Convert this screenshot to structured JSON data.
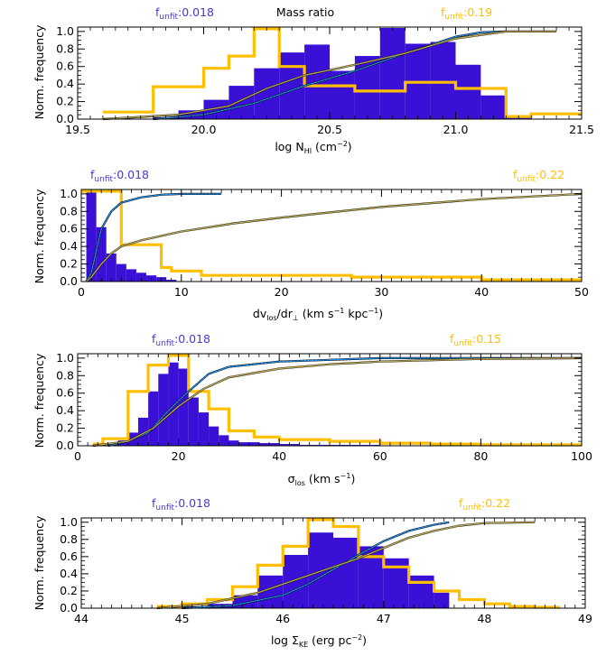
{
  "colors": {
    "blue_hist": "#3a10d6",
    "yellow_hist": "#ffbf00",
    "blue_cdf": "#1f6fd0",
    "yellow_cdf": "#e0a030",
    "cyan_cdf": "#30c0d0",
    "black_cdf": "#000000"
  },
  "chart_data": [
    {
      "type": "bar",
      "title": "Mass ratio",
      "ylabel": "Norm. frequency",
      "xlabel_main": "log N",
      "xlabel_sub": "HI",
      "xlabel_tail": " (cm",
      "xlabel_sup": "−2",
      "xlabel_end": ")",
      "xlim": [
        19.5,
        21.5
      ],
      "ylim": [
        0,
        1.05
      ],
      "xticks": [
        19.5,
        20.0,
        20.5,
        21.0,
        21.5
      ],
      "xtick_labels": [
        "19.5",
        "20.0",
        "20.5",
        "21.0",
        "21.5"
      ],
      "yticks": [
        0.0,
        0.2,
        0.4,
        0.6,
        0.8,
        1.0
      ],
      "ytick_labels": [
        "0.0",
        "0.2",
        "0.4",
        "0.6",
        "0.8",
        "1.0"
      ],
      "funfit_blue": {
        "prefix": "f",
        "sub": "unfit",
        "value": ":0.018"
      },
      "funfit_yellow": {
        "prefix": "f",
        "sub": "unfit",
        "value": ":0.19"
      },
      "blue_bins": [
        19.8,
        19.9,
        20.0,
        20.1,
        20.2,
        20.3,
        20.4,
        20.5,
        20.6,
        20.7,
        20.8,
        20.9,
        21.0,
        21.1,
        21.2,
        21.3
      ],
      "blue_values": [
        0.02,
        0.1,
        0.22,
        0.38,
        0.58,
        0.76,
        0.85,
        0.55,
        0.72,
        1.04,
        0.86,
        0.88,
        0.62,
        0.27,
        0.04
      ],
      "yellow_bins": [
        19.6,
        19.8,
        20.0,
        20.1,
        20.2,
        20.3,
        20.4,
        20.6,
        20.8,
        21.0,
        21.2,
        21.3,
        21.5
      ],
      "yellow_values": [
        0.08,
        0.37,
        0.58,
        0.72,
        1.03,
        0.6,
        0.38,
        0.32,
        0.42,
        0.35,
        0.03,
        0.06
      ],
      "cdfs": [
        {
          "color": "blue",
          "x": [
            19.8,
            20.0,
            20.2,
            20.4,
            20.6,
            20.8,
            21.0,
            21.1,
            21.2
          ],
          "y": [
            0.0,
            0.05,
            0.18,
            0.38,
            0.55,
            0.75,
            0.94,
            0.99,
            1.0
          ]
        },
        {
          "color": "yellow",
          "x": [
            19.6,
            19.9,
            20.1,
            20.25,
            20.4,
            20.6,
            20.8,
            21.0,
            21.2,
            21.4
          ],
          "y": [
            0.0,
            0.05,
            0.15,
            0.35,
            0.5,
            0.62,
            0.75,
            0.92,
            1.0,
            1.0
          ]
        }
      ]
    },
    {
      "type": "bar",
      "ylabel": "Norm. frequency",
      "xlabel_main": "dv",
      "xlabel_sub": "los",
      "xlabel_tail": "/dr",
      "xlabel_sub2": "⊥",
      "xlabel_tail2": " (km s",
      "xlabel_sup": "−1",
      "xlabel_tail3": " kpc",
      "xlabel_sup2": "−1",
      "xlabel_end": ")",
      "xlim": [
        0,
        50
      ],
      "ylim": [
        0,
        1.05
      ],
      "xticks": [
        0,
        10,
        20,
        30,
        40,
        50
      ],
      "xtick_labels": [
        "0",
        "10",
        "20",
        "30",
        "40",
        "50"
      ],
      "yticks": [
        0.0,
        0.2,
        0.4,
        0.6,
        0.8,
        1.0
      ],
      "ytick_labels": [
        "0.0",
        "0.2",
        "0.4",
        "0.6",
        "0.8",
        "1.0"
      ],
      "funfit_blue": {
        "prefix": "f",
        "sub": "unfit",
        "value": ":0.018"
      },
      "funfit_yellow": {
        "prefix": "f",
        "sub": "unfit",
        "value": ":0.22"
      },
      "blue_bins": [
        0.5,
        1.5,
        2.5,
        3.5,
        4.5,
        5.5,
        6.5,
        7.5,
        8.5,
        9.5
      ],
      "blue_values": [
        1.03,
        0.62,
        0.32,
        0.2,
        0.14,
        0.1,
        0.07,
        0.05,
        0.02
      ],
      "yellow_bins": [
        0,
        1,
        4,
        5,
        8,
        9,
        12,
        27,
        28,
        40,
        50
      ],
      "yellow_values": [
        1.03,
        1.03,
        0.42,
        0.42,
        0.16,
        0.12,
        0.07,
        0.05,
        0.05,
        0.02
      ],
      "cdfs": [
        {
          "color": "blue",
          "x": [
            0.5,
            1,
            1.5,
            2,
            3,
            4,
            6,
            8,
            10,
            12,
            14
          ],
          "y": [
            0.0,
            0.1,
            0.35,
            0.6,
            0.8,
            0.9,
            0.96,
            0.99,
            1.0,
            1.0,
            1.0
          ]
        },
        {
          "color": "yellow",
          "x": [
            0.5,
            1,
            2,
            3,
            4,
            6,
            10,
            15,
            20,
            30,
            40,
            50
          ],
          "y": [
            0.0,
            0.05,
            0.2,
            0.32,
            0.4,
            0.47,
            0.57,
            0.66,
            0.73,
            0.85,
            0.94,
            1.0
          ]
        }
      ]
    },
    {
      "type": "bar",
      "ylabel": "Norm. frequency",
      "xlabel_main": "σ",
      "xlabel_sub": "los",
      "xlabel_tail": " (km s",
      "xlabel_sup": "−1",
      "xlabel_end": ")",
      "xlim": [
        0,
        100
      ],
      "ylim": [
        0,
        1.05
      ],
      "xticks": [
        0,
        20,
        40,
        60,
        80,
        100
      ],
      "xtick_labels": [
        "0",
        "20",
        "40",
        "60",
        "80",
        "100"
      ],
      "yticks": [
        0.0,
        0.2,
        0.4,
        0.6,
        0.8,
        1.0
      ],
      "ytick_labels": [
        "0.0",
        "0.2",
        "0.4",
        "0.6",
        "0.8",
        "1.0"
      ],
      "funfit_blue": {
        "prefix": "f",
        "sub": "unfit",
        "value": ":0.018"
      },
      "funfit_yellow": {
        "prefix": "f",
        "sub": "unfit",
        "value": ":0.15"
      },
      "blue_bins": [
        6,
        8,
        10,
        12,
        14,
        16,
        18,
        20,
        22,
        24,
        26,
        28,
        30,
        32,
        36,
        40,
        44,
        50,
        56,
        60
      ],
      "blue_values": [
        0.02,
        0.06,
        0.15,
        0.32,
        0.62,
        0.82,
        0.95,
        0.88,
        0.55,
        0.38,
        0.22,
        0.12,
        0.06,
        0.04,
        0.03,
        0.02,
        0.01,
        0.01,
        0.01
      ],
      "yellow_bins": [
        3,
        5,
        10,
        14,
        18,
        22,
        26,
        30,
        35,
        40,
        50,
        60,
        70,
        80,
        90,
        100
      ],
      "yellow_values": [
        0.02,
        0.08,
        0.62,
        0.92,
        1.03,
        0.62,
        0.42,
        0.17,
        0.1,
        0.07,
        0.05,
        0.03,
        0.02,
        0.01,
        0.01
      ],
      "cdfs": [
        {
          "color": "blue",
          "x": [
            6,
            10,
            14,
            18,
            22,
            26,
            30,
            40,
            50,
            60,
            70,
            80,
            90,
            100
          ],
          "y": [
            0.0,
            0.05,
            0.15,
            0.4,
            0.62,
            0.82,
            0.9,
            0.96,
            0.98,
            1.0,
            1.0,
            1.0,
            1.0,
            1.0
          ]
        },
        {
          "color": "yellow",
          "x": [
            3,
            10,
            15,
            20,
            25,
            30,
            40,
            50,
            60,
            80,
            100
          ],
          "y": [
            0.0,
            0.05,
            0.2,
            0.45,
            0.65,
            0.78,
            0.88,
            0.93,
            0.96,
            0.99,
            1.0
          ]
        }
      ]
    },
    {
      "type": "bar",
      "ylabel": "Norm. frequency",
      "xlabel_main": "log Σ",
      "xlabel_sub": "KE",
      "xlabel_tail": " (erg pc",
      "xlabel_sup": "−2",
      "xlabel_end": ")",
      "xlim": [
        44,
        49
      ],
      "ylim": [
        0,
        1.05
      ],
      "xticks": [
        44,
        45,
        46,
        47,
        48,
        49
      ],
      "xtick_labels": [
        "44",
        "45",
        "46",
        "47",
        "48",
        "49"
      ],
      "yticks": [
        0.0,
        0.2,
        0.4,
        0.6,
        0.8,
        1.0
      ],
      "ytick_labels": [
        "0.0",
        "0.2",
        "0.4",
        "0.6",
        "0.8",
        "1.0"
      ],
      "funfit_blue": {
        "prefix": "f",
        "sub": "unfit",
        "value": ":0.018"
      },
      "funfit_yellow": {
        "prefix": "f",
        "sub": "unfit",
        "value": ":0.22"
      },
      "blue_bins": [
        45.0,
        45.25,
        45.5,
        45.75,
        46.0,
        46.25,
        46.5,
        46.75,
        47.0,
        47.25,
        47.5,
        47.65
      ],
      "blue_values": [
        0.02,
        0.05,
        0.15,
        0.38,
        0.62,
        0.88,
        0.82,
        0.72,
        0.58,
        0.38,
        0.18
      ],
      "yellow_bins": [
        44.75,
        45.0,
        45.25,
        45.5,
        45.75,
        46.0,
        46.25,
        46.5,
        46.75,
        47.0,
        47.25,
        47.5,
        47.75,
        48.0,
        48.25,
        48.5,
        48.75
      ],
      "yellow_values": [
        0.02,
        0.05,
        0.1,
        0.25,
        0.5,
        0.72,
        1.03,
        0.95,
        0.6,
        0.48,
        0.3,
        0.2,
        0.1,
        0.05,
        0.02,
        0.01
      ],
      "cdfs": [
        {
          "color": "blue",
          "x": [
            45.0,
            45.5,
            46.0,
            46.25,
            46.5,
            46.75,
            47.0,
            47.25,
            47.5,
            47.65
          ],
          "y": [
            0.0,
            0.03,
            0.15,
            0.28,
            0.45,
            0.62,
            0.78,
            0.9,
            0.97,
            1.0
          ]
        },
        {
          "color": "yellow",
          "x": [
            44.75,
            45.25,
            45.75,
            46.25,
            46.75,
            47.0,
            47.25,
            47.5,
            47.75,
            48.0,
            48.5
          ],
          "y": [
            0.0,
            0.05,
            0.18,
            0.38,
            0.58,
            0.7,
            0.82,
            0.9,
            0.96,
            0.99,
            1.0
          ]
        }
      ]
    }
  ]
}
